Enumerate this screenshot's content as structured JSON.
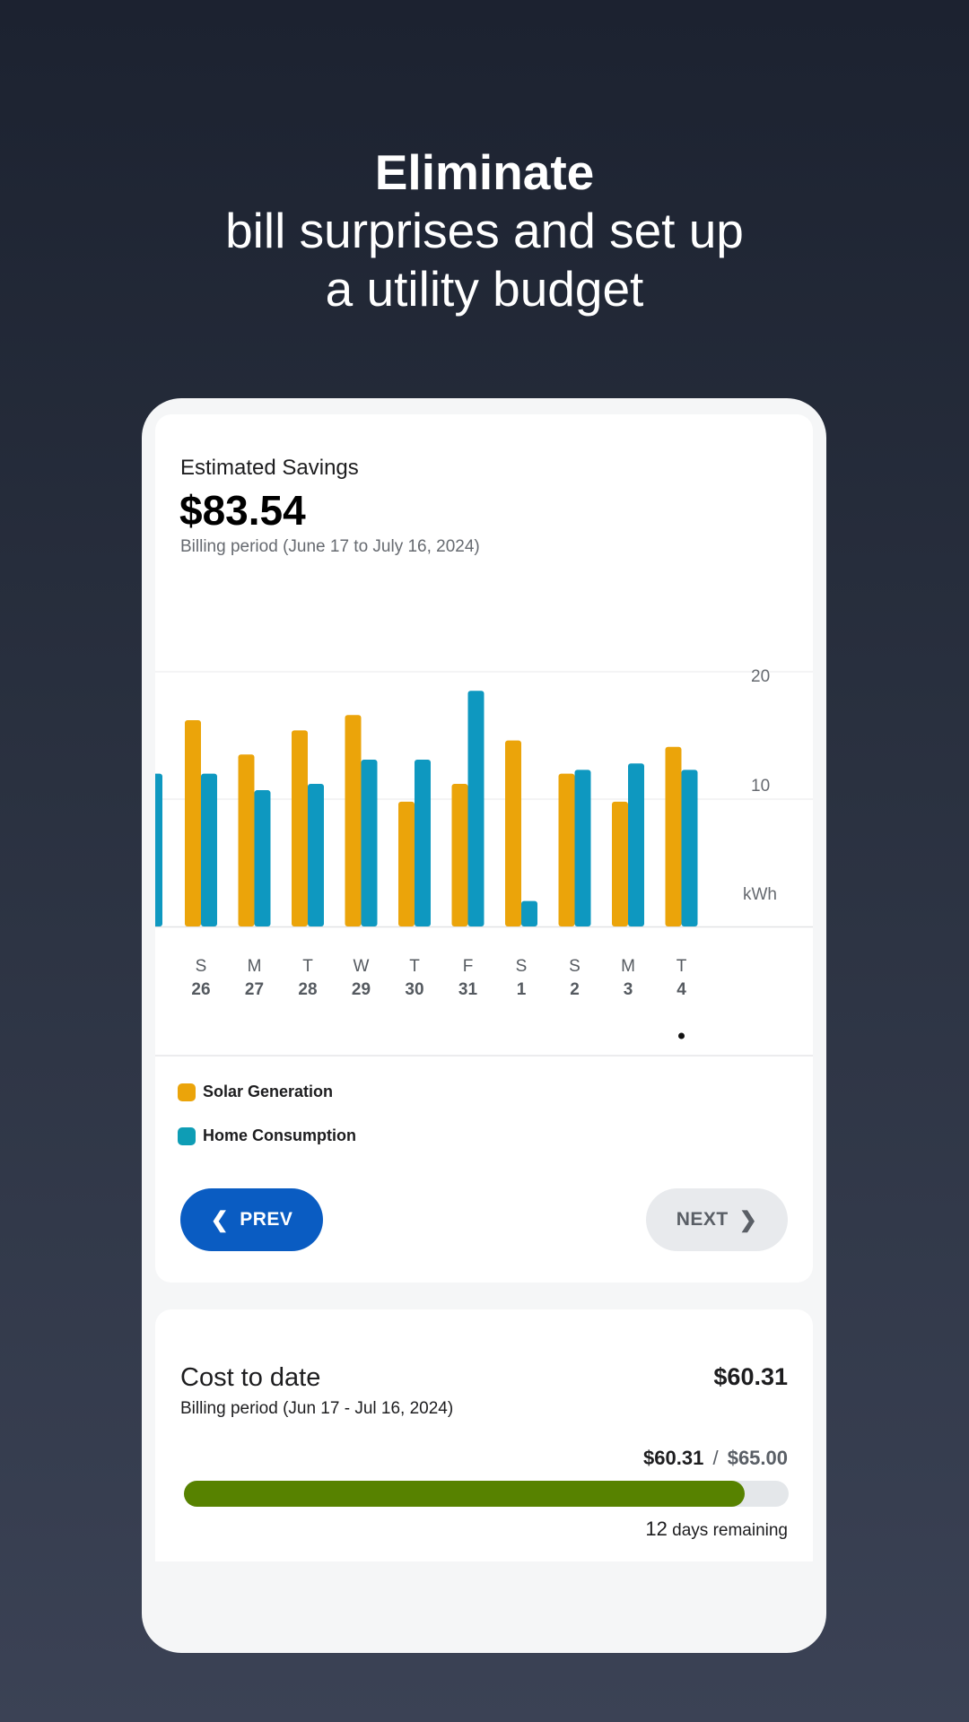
{
  "headline": {
    "bold": "Eliminate",
    "line2": "bill surprises and set up",
    "line3": "a utility budget"
  },
  "savings_card": {
    "title": "Estimated Savings",
    "amount": "$83.54",
    "period": "Billing period (June 17 to July 16, 2024)"
  },
  "chart_data": {
    "type": "bar",
    "unit_label": "kWh",
    "y_ticks": [
      "20",
      "10"
    ],
    "ylim": [
      0,
      20
    ],
    "grid": true,
    "categories": [
      {
        "day": "S",
        "date": "26"
      },
      {
        "day": "M",
        "date": "27"
      },
      {
        "day": "T",
        "date": "28"
      },
      {
        "day": "W",
        "date": "29"
      },
      {
        "day": "T",
        "date": "30"
      },
      {
        "day": "F",
        "date": "31"
      },
      {
        "day": "S",
        "date": "1"
      },
      {
        "day": "S",
        "date": "2"
      },
      {
        "day": "M",
        "date": "3"
      },
      {
        "day": "T",
        "date": "4"
      }
    ],
    "partial_previous_consumption": 12.0,
    "series": [
      {
        "name": "Solar Generation",
        "color": "#eba40a",
        "values": [
          16.2,
          13.5,
          15.4,
          16.6,
          9.8,
          11.2,
          14.6,
          12.0,
          9.8,
          14.1
        ]
      },
      {
        "name": "Home Consumption",
        "color": "#0e98c0",
        "values": [
          12.0,
          10.7,
          11.2,
          13.1,
          13.1,
          18.5,
          2.0,
          12.3,
          12.8,
          12.3
        ]
      }
    ],
    "selected_index": 9
  },
  "legend": {
    "solar": {
      "label": "Solar Generation",
      "color": "#eba40a"
    },
    "home": {
      "label": "Home Consumption",
      "color": "#0e9db5"
    }
  },
  "nav": {
    "prev": "PREV",
    "next": "NEXT",
    "prev_icon": "chevron-left-icon",
    "next_icon": "chevron-right-icon"
  },
  "cost_card": {
    "title": "Cost to date",
    "amount": "$60.31",
    "period": "Billing period (Jun 17 - Jul 16, 2024)",
    "spent": "$60.31",
    "separator": "/",
    "budget": "$65.00",
    "progress": 0.928,
    "progress_color": "#578200",
    "remaining_num": "12",
    "remaining_text": "days remaining"
  }
}
